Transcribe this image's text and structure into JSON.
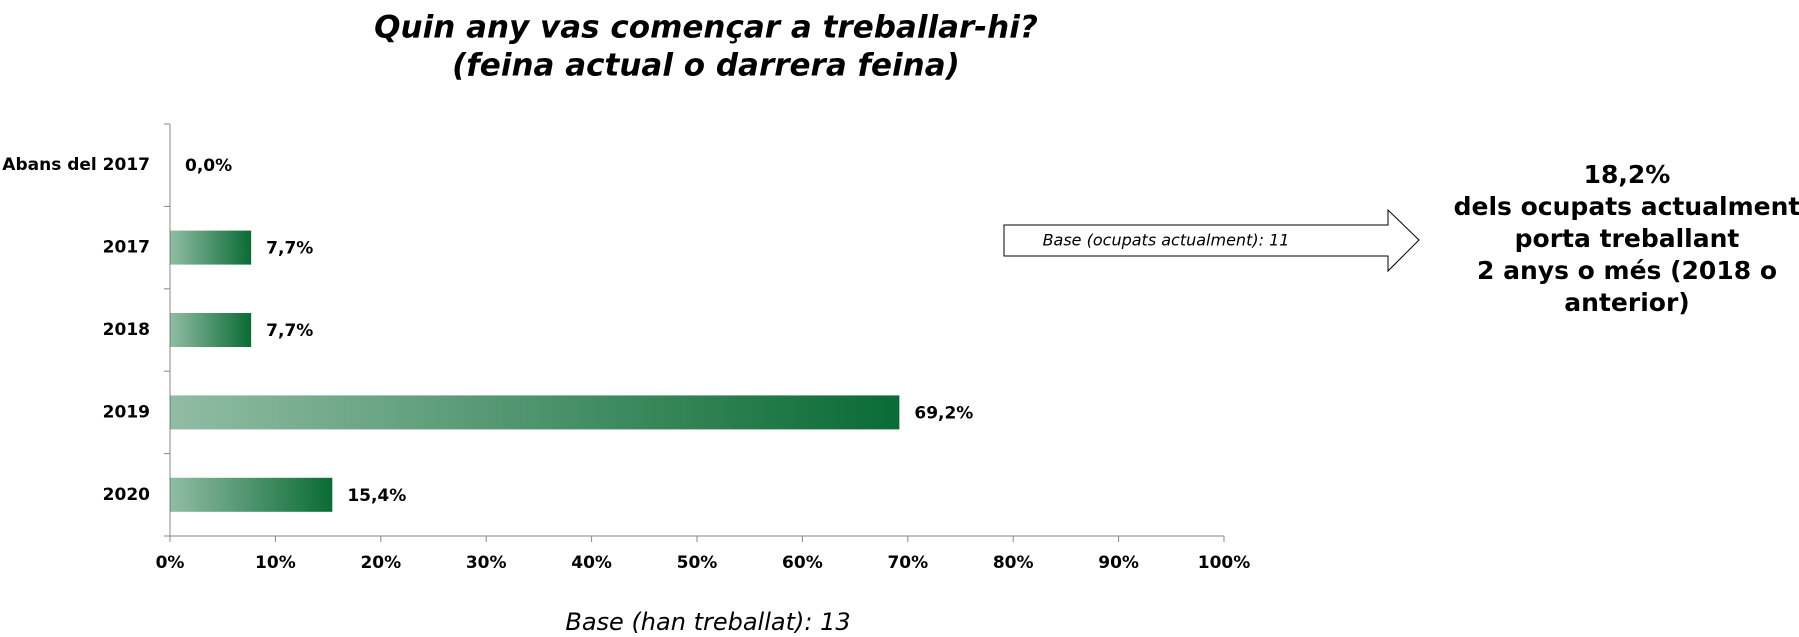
{
  "chart_data": {
    "type": "bar",
    "orientation": "horizontal",
    "title": [
      "Quin any vas començar a treballar-hi?",
      "(feina actual o darrera feina)"
    ],
    "categories": [
      "Abans del 2017",
      "2017",
      "2018",
      "2019",
      "2020"
    ],
    "values": [
      0,
      7.7,
      7.7,
      69.2,
      15.4
    ],
    "value_labels": [
      "0,0%",
      "7,7%",
      "7,7%",
      "69,2%",
      "15,4%"
    ],
    "color": "#0a6b35",
    "xlim": [
      0,
      100
    ],
    "xticks": [
      {
        "value": 0,
        "label": "0%"
      },
      {
        "value": 10,
        "label": "10%"
      },
      {
        "value": 20,
        "label": "20%"
      },
      {
        "value": 30,
        "label": "30%"
      },
      {
        "value": 40,
        "label": "40%"
      },
      {
        "value": 50,
        "label": "50%"
      },
      {
        "value": 60,
        "label": "60%"
      },
      {
        "value": 70,
        "label": "70%"
      },
      {
        "value": 80,
        "label": "80%"
      },
      {
        "value": 90,
        "label": "90%"
      },
      {
        "value": 100,
        "label": "100%"
      }
    ],
    "x_label": "Base (han treballat): 13",
    "arrow_note": "Base (ocupats actualment): 11",
    "side_note": [
      "18,2%",
      "dels ocupats actualment",
      "porta treballant",
      "2 anys o més (2018 o",
      "anterior)"
    ],
    "grid": false
  }
}
